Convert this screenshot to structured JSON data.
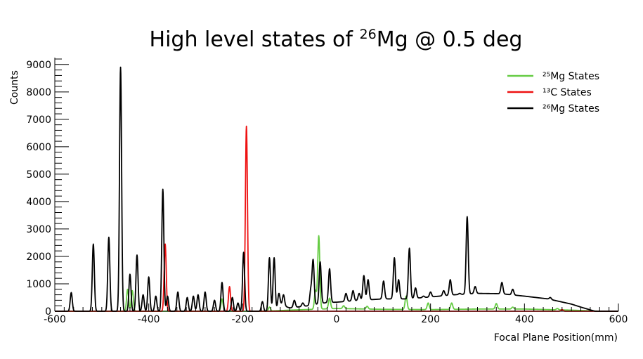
{
  "chart_data": {
    "type": "line",
    "title": "High level states of ²⁶Mg @ 0.5  deg",
    "xlabel": "Focal Plane Position(mm)",
    "ylabel": "Counts",
    "xlim": [
      -600,
      600
    ],
    "ylim": [
      0,
      9200
    ],
    "grid": false,
    "legend_position": "top-right",
    "x_ticks": [
      -600,
      -400,
      -200,
      0,
      200,
      400,
      600
    ],
    "y_ticks": [
      0,
      1000,
      2000,
      3000,
      4000,
      5000,
      6000,
      7000,
      8000,
      9000
    ],
    "series": [
      {
        "name": "²⁵Mg States",
        "color": "#66cc44",
        "baseline": [
          [
            -600,
            0
          ],
          [
            -150,
            0
          ],
          [
            -100,
            40
          ],
          [
            0,
            100
          ],
          [
            100,
            70
          ],
          [
            200,
            60
          ],
          [
            300,
            80
          ],
          [
            400,
            80
          ],
          [
            500,
            40
          ],
          [
            560,
            0
          ],
          [
            600,
            0
          ]
        ],
        "peaks": [
          {
            "x": -445,
            "y": 800
          },
          {
            "x": -435,
            "y": 750
          },
          {
            "x": -244,
            "y": 450
          },
          {
            "x": -143,
            "y": 150
          },
          {
            "x": -45,
            "y": 750
          },
          {
            "x": -38,
            "y": 2750
          },
          {
            "x": -15,
            "y": 480
          },
          {
            "x": 15,
            "y": 200
          },
          {
            "x": 65,
            "y": 180
          },
          {
            "x": 148,
            "y": 550
          },
          {
            "x": 195,
            "y": 300
          },
          {
            "x": 245,
            "y": 300
          },
          {
            "x": 340,
            "y": 280
          },
          {
            "x": 375,
            "y": 150
          },
          {
            "x": 470,
            "y": 100
          }
        ]
      },
      {
        "name": "¹³C States",
        "color": "#ee1111",
        "baseline": [
          [
            -600,
            0
          ],
          [
            600,
            0
          ]
        ],
        "peaks": [
          {
            "x": -365,
            "y": 2450
          },
          {
            "x": -228,
            "y": 900
          },
          {
            "x": -192,
            "y": 6750
          },
          {
            "x": 480,
            "y": 60
          }
        ]
      },
      {
        "name": "²⁶Mg States",
        "color": "#000000",
        "baseline": [
          [
            -600,
            0
          ],
          [
            -130,
            0
          ],
          [
            -120,
            250
          ],
          [
            -100,
            120
          ],
          [
            -60,
            200
          ],
          [
            -20,
            320
          ],
          [
            0,
            330
          ],
          [
            50,
            400
          ],
          [
            100,
            450
          ],
          [
            150,
            450
          ],
          [
            200,
            520
          ],
          [
            250,
            600
          ],
          [
            300,
            650
          ],
          [
            350,
            640
          ],
          [
            400,
            550
          ],
          [
            450,
            450
          ],
          [
            500,
            260
          ],
          [
            520,
            150
          ],
          [
            550,
            0
          ],
          [
            600,
            0
          ]
        ],
        "peaks": [
          {
            "x": -565,
            "y": 680
          },
          {
            "x": -518,
            "y": 2450
          },
          {
            "x": -485,
            "y": 2700
          },
          {
            "x": -460,
            "y": 8900
          },
          {
            "x": -440,
            "y": 1350
          },
          {
            "x": -425,
            "y": 2050
          },
          {
            "x": -412,
            "y": 600
          },
          {
            "x": -400,
            "y": 1250
          },
          {
            "x": -385,
            "y": 550
          },
          {
            "x": -370,
            "y": 4450
          },
          {
            "x": -360,
            "y": 550
          },
          {
            "x": -338,
            "y": 700
          },
          {
            "x": -318,
            "y": 500
          },
          {
            "x": -305,
            "y": 550
          },
          {
            "x": -295,
            "y": 600
          },
          {
            "x": -280,
            "y": 700
          },
          {
            "x": -260,
            "y": 400
          },
          {
            "x": -244,
            "y": 1050
          },
          {
            "x": -222,
            "y": 500
          },
          {
            "x": -210,
            "y": 300
          },
          {
            "x": -198,
            "y": 2150
          },
          {
            "x": -158,
            "y": 350
          },
          {
            "x": -143,
            "y": 1950
          },
          {
            "x": -133,
            "y": 1950
          },
          {
            "x": -123,
            "y": 650
          },
          {
            "x": -113,
            "y": 600
          },
          {
            "x": -90,
            "y": 400
          },
          {
            "x": -72,
            "y": 300
          },
          {
            "x": -55,
            "y": 750
          },
          {
            "x": -50,
            "y": 1850
          },
          {
            "x": -35,
            "y": 1800
          },
          {
            "x": -15,
            "y": 1550
          },
          {
            "x": 20,
            "y": 650
          },
          {
            "x": 35,
            "y": 750
          },
          {
            "x": 48,
            "y": 650
          },
          {
            "x": 58,
            "y": 1300
          },
          {
            "x": 67,
            "y": 1150
          },
          {
            "x": 100,
            "y": 1100
          },
          {
            "x": 123,
            "y": 1950
          },
          {
            "x": 132,
            "y": 1150
          },
          {
            "x": 155,
            "y": 2300
          },
          {
            "x": 168,
            "y": 850
          },
          {
            "x": 185,
            "y": 550
          },
          {
            "x": 200,
            "y": 700
          },
          {
            "x": 228,
            "y": 750
          },
          {
            "x": 242,
            "y": 1150
          },
          {
            "x": 262,
            "y": 650
          },
          {
            "x": 278,
            "y": 3450
          },
          {
            "x": 295,
            "y": 900
          },
          {
            "x": 330,
            "y": 450
          },
          {
            "x": 352,
            "y": 1050
          },
          {
            "x": 375,
            "y": 800
          },
          {
            "x": 395,
            "y": 500
          },
          {
            "x": 420,
            "y": 450
          },
          {
            "x": 455,
            "y": 500
          },
          {
            "x": 478,
            "y": 250
          }
        ]
      }
    ]
  }
}
